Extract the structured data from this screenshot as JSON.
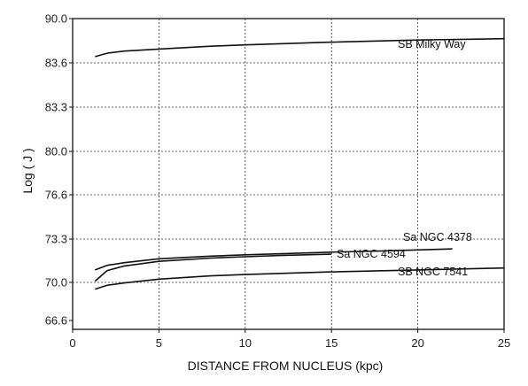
{
  "chart_data": {
    "type": "line",
    "xlabel": "DISTANCE  FROM  NUCLEUS  (kpc)",
    "ylabel": "Log ( J )",
    "xlim": [
      0,
      25
    ],
    "x_ticks": [
      0,
      5,
      10,
      15,
      20,
      25
    ],
    "y_ticks": [
      90.0,
      83.6,
      83.3,
      80.0,
      76.6,
      73.3,
      70.0,
      66.6
    ],
    "y_tick_labels": [
      "90.0",
      "83.6",
      "83.3",
      "80.0",
      "76.6",
      "73.3",
      "70.0",
      "66.6"
    ],
    "y_scale": "categorical-ticks (evenly spaced labels)",
    "grid": true,
    "series": [
      {
        "name": "SB  Milky Way",
        "x": [
          1.3,
          2,
          3,
          5,
          8,
          10,
          15,
          20,
          25
        ],
        "y": [
          84.5,
          85.0,
          85.3,
          85.6,
          86.0,
          86.2,
          86.6,
          86.9,
          87.1
        ]
      },
      {
        "name": "Sa  NGC 4378",
        "x": [
          1.3,
          2,
          3,
          5,
          8,
          10,
          15,
          18,
          22
        ],
        "y": [
          70.95,
          71.3,
          71.5,
          71.8,
          72.0,
          72.1,
          72.3,
          72.4,
          72.55
        ]
      },
      {
        "name": "Sa  NGC 4594",
        "x": [
          1.3,
          2,
          3,
          5,
          8,
          10,
          12,
          15
        ],
        "y": [
          70.1,
          70.9,
          71.25,
          71.6,
          71.85,
          71.95,
          72.05,
          72.15
        ]
      },
      {
        "name": "SB  NGC 7541",
        "x": [
          1.3,
          2,
          3,
          5,
          8,
          10,
          15,
          20,
          25
        ],
        "y": [
          69.4,
          69.75,
          69.95,
          70.25,
          70.5,
          70.6,
          70.8,
          70.95,
          71.1
        ]
      }
    ]
  }
}
